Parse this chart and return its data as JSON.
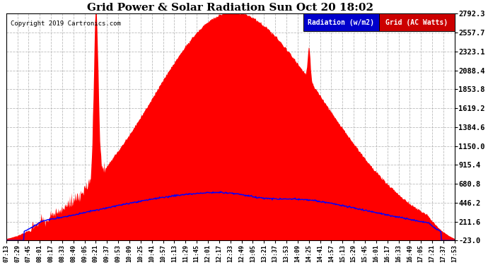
{
  "title": "Grid Power & Solar Radiation Sun Oct 20 18:02",
  "copyright": "Copyright 2019 Cartronics.com",
  "legend_labels": [
    "Radiation (w/m2)",
    "Grid (AC Watts)"
  ],
  "legend_colors_bg": [
    "#0000cc",
    "#cc0000"
  ],
  "y_ticks": [
    -23.0,
    211.6,
    446.2,
    680.8,
    915.4,
    1150.0,
    1384.6,
    1619.2,
    1853.8,
    2088.4,
    2323.1,
    2557.7,
    2792.3
  ],
  "y_min": -23.0,
  "y_max": 2792.3,
  "background_color": "#ffffff",
  "plot_bg_color": "#ffffff",
  "grid_color": "#aaaaaa",
  "fill_color": "#ff0000",
  "line_color": "#0000ff",
  "x_labels": [
    "07:13",
    "07:29",
    "07:45",
    "08:01",
    "08:17",
    "08:33",
    "08:49",
    "09:05",
    "09:21",
    "09:37",
    "09:53",
    "10:09",
    "10:25",
    "10:41",
    "10:57",
    "11:13",
    "11:29",
    "11:45",
    "12:01",
    "12:17",
    "12:33",
    "12:49",
    "13:05",
    "13:21",
    "13:37",
    "13:53",
    "14:09",
    "14:25",
    "14:41",
    "14:57",
    "15:13",
    "15:29",
    "15:45",
    "16:01",
    "16:17",
    "16:33",
    "16:49",
    "17:05",
    "17:21",
    "17:37",
    "17:53"
  ]
}
